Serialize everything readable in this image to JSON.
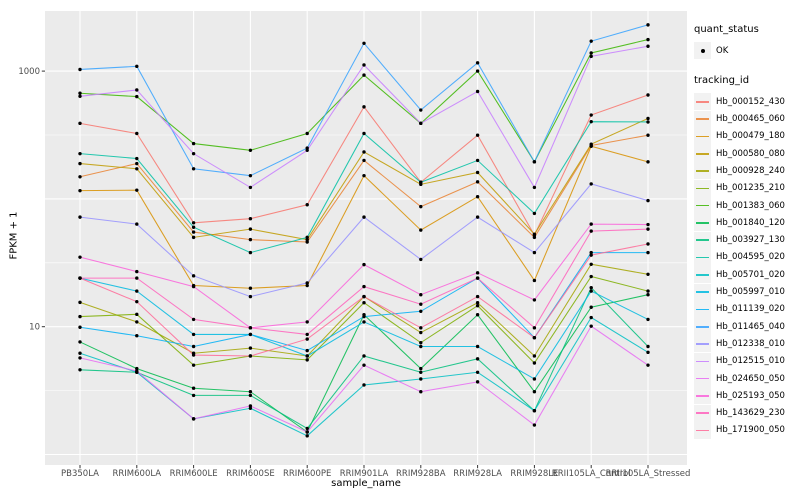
{
  "figure": {
    "background": "#ffffff",
    "panel_background": "#EBEBEB",
    "gridline_color": "#FFFFFF",
    "axis_text_color": "#4D4D4D",
    "point_color": "#000000"
  },
  "legend": {
    "quant_status": {
      "title": "quant_status",
      "entries": [
        {
          "label": "OK",
          "marker": "point",
          "color": "#000000"
        }
      ]
    },
    "tracking_id": {
      "title": "tracking_id"
    }
  },
  "chart_data": {
    "type": "line",
    "title": "",
    "xlabel": "sample_name",
    "ylabel": "FPKM + 1",
    "x_scale": "categorical",
    "y_scale": "log10",
    "ylim": [
      1,
      3000
    ],
    "grid": true,
    "legend_position": "right",
    "y_tick_labels": [
      "1000",
      "10"
    ],
    "y_tick_values": [
      1000,
      10
    ],
    "categories": [
      "PB350LA",
      "RRIM600LA",
      "RRIM600LE",
      "RRIM600SE",
      "RRIM600PE",
      "RRIM901LA",
      "RRIM928BA",
      "RRIM928LA",
      "RRIM928LE",
      "RRII105LA_Control",
      "RRII105LA_Stressed"
    ],
    "series": [
      {
        "name": "Hb_000152_430",
        "color": "#F8766D",
        "values": [
          390,
          325,
          65,
          70,
          90,
          525,
          135,
          315,
          52,
          453,
          650
        ]
      },
      {
        "name": "Hb_000465_060",
        "color": "#EA8331",
        "values": [
          149,
          189,
          55,
          48,
          46,
          200,
          87,
          136,
          50,
          262,
          315
        ]
      },
      {
        "name": "Hb_000479_180",
        "color": "#D89000",
        "values": [
          116,
          117,
          21,
          20,
          21,
          152,
          57,
          104,
          23,
          258,
          195
        ]
      },
      {
        "name": "Hb_000580_080",
        "color": "#C09B00",
        "values": [
          189,
          172,
          50,
          58,
          48,
          233,
          130,
          161,
          53,
          268,
          426
        ]
      },
      {
        "name": "Hb_000928_240",
        "color": "#A3A500",
        "values": [
          15.5,
          10.9,
          6.2,
          6.8,
          5.9,
          17.2,
          9.0,
          15.4,
          5.9,
          30.8,
          25.7
        ]
      },
      {
        "name": "Hb_001235_210",
        "color": "#7CAE00",
        "values": [
          12.0,
          12.5,
          5.0,
          5.9,
          5.5,
          15.4,
          7.5,
          14.6,
          5.2,
          24.7,
          19.0
        ]
      },
      {
        "name": "Hb_001383_060",
        "color": "#39B600",
        "values": [
          671,
          632,
          271,
          240,
          325,
          930,
          390,
          1000,
          195,
          1386,
          1765
        ]
      },
      {
        "name": "Hb_001840_120",
        "color": "#00BB4E",
        "values": [
          7.6,
          4.7,
          3.3,
          3.1,
          1.5,
          12.4,
          4.7,
          12.4,
          3.1,
          14.2,
          17.8
        ]
      },
      {
        "name": "Hb_003927_130",
        "color": "#00BF7D",
        "values": [
          4.6,
          4.4,
          2.9,
          2.9,
          1.6,
          5.9,
          4.4,
          5.6,
          2.2,
          20.2,
          7.0
        ]
      },
      {
        "name": "Hb_004595_020",
        "color": "#00C1A3",
        "values": [
          226,
          207,
          60,
          38,
          50,
          325,
          135,
          200,
          77,
          402,
          400
        ]
      },
      {
        "name": "Hb_005701_020",
        "color": "#00BFC4",
        "values": [
          6.2,
          4.4,
          1.9,
          2.3,
          1.4,
          3.5,
          3.9,
          4.4,
          2.2,
          11.8,
          6.3
        ]
      },
      {
        "name": "Hb_005997_010",
        "color": "#00BAE0",
        "values": [
          24,
          19,
          8.7,
          8.7,
          5.9,
          10.9,
          7.0,
          7.0,
          3.9,
          19.0,
          11.4
        ]
      },
      {
        "name": "Hb_011139_020",
        "color": "#00B0F6",
        "values": [
          9.9,
          8.5,
          7.0,
          8.7,
          6.5,
          12.0,
          13.2,
          24.0,
          8.2,
          38,
          38
        ]
      },
      {
        "name": "Hb_011465_040",
        "color": "#35A2FF",
        "values": [
          1030,
          1090,
          172,
          152,
          250,
          1650,
          496,
          1160,
          195,
          1715,
          2300
        ]
      },
      {
        "name": "Hb_012338_010",
        "color": "#9590FF",
        "values": [
          72,
          63.5,
          25,
          17.2,
          22,
          72,
          33.6,
          72,
          38,
          131,
          97
        ]
      },
      {
        "name": "Hb_012515_010",
        "color": "#C77CFF",
        "values": [
          635,
          712,
          226,
          123,
          240,
          1117,
          390,
          693,
          123,
          1305,
          1565
        ]
      },
      {
        "name": "Hb_024650_050",
        "color": "#E76BF3",
        "values": [
          5.7,
          4.5,
          1.9,
          2.4,
          1.5,
          5.0,
          3.1,
          3.7,
          1.7,
          10.1,
          5.0
        ]
      },
      {
        "name": "Hb_025193_050",
        "color": "#FA62DB",
        "values": [
          35,
          27,
          20.6,
          9.8,
          10.9,
          30.6,
          17.8,
          26.4,
          16.2,
          63.5,
          63
        ]
      },
      {
        "name": "Hb_143629_230",
        "color": "#FF62BC",
        "values": [
          24,
          24,
          11.4,
          9.8,
          8.7,
          20.6,
          15.0,
          24.0,
          9.8,
          56,
          58
        ]
      },
      {
        "name": "Hb_171900_050",
        "color": "#FF6A98",
        "values": [
          24,
          15.7,
          6.0,
          5.9,
          8.0,
          17.2,
          9.8,
          17.2,
          8.2,
          36.3,
          44.4
        ]
      }
    ]
  }
}
